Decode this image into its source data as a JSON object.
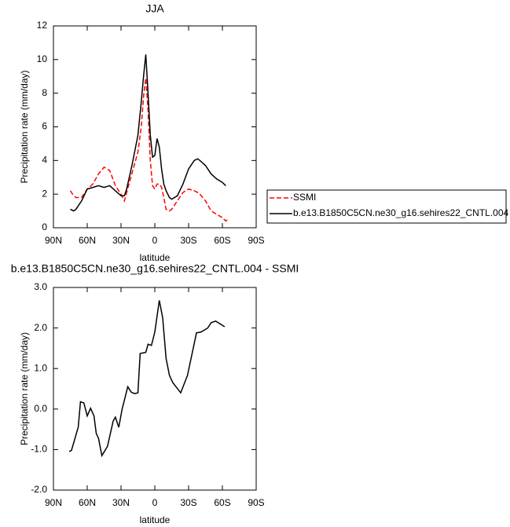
{
  "chart_data": [
    {
      "type": "line",
      "title": "JJA",
      "x_label": "latitude",
      "y_label": "Precipitation rate (mm/day)",
      "x": [
        75,
        72,
        70,
        65,
        60,
        55,
        50,
        45,
        40,
        35,
        30,
        27,
        25,
        20,
        15,
        12,
        10,
        8,
        6,
        4,
        2,
        0,
        -2,
        -4,
        -6,
        -8,
        -10,
        -13,
        -15,
        -20,
        -25,
        -30,
        -35,
        -38,
        -40,
        -45,
        -50,
        -55,
        -60,
        -63,
        -65
      ],
      "series": [
        {
          "name": "SSMI",
          "color": "#ff0000",
          "dashed": true,
          "values": [
            2.2,
            1.9,
            1.8,
            1.8,
            2.3,
            2.6,
            3.2,
            3.6,
            3.4,
            2.5,
            2.0,
            1.6,
            2.1,
            3.3,
            4.5,
            6.0,
            7.8,
            8.9,
            7.0,
            4.0,
            2.5,
            2.3,
            2.6,
            2.6,
            2.4,
            1.8,
            1.1,
            1.0,
            1.1,
            1.6,
            2.1,
            2.3,
            2.2,
            2.1,
            2.0,
            1.6,
            1.0,
            0.8,
            0.6,
            0.4,
            0.5
          ]
        },
        {
          "name": "b.e13.B1850C5CN.ne30_g16.sehires22_CNTL.004",
          "color": "#000000",
          "dashed": false,
          "values": [
            1.1,
            1.0,
            1.1,
            1.6,
            2.3,
            2.4,
            2.5,
            2.4,
            2.5,
            2.2,
            1.9,
            1.9,
            2.3,
            3.8,
            5.5,
            7.5,
            9.0,
            10.3,
            8.0,
            5.5,
            4.2,
            4.3,
            5.3,
            4.8,
            3.5,
            2.6,
            2.2,
            1.8,
            1.7,
            1.9,
            2.6,
            3.5,
            4.0,
            4.1,
            4.0,
            3.7,
            3.2,
            2.9,
            2.7,
            2.5,
            null
          ]
        }
      ],
      "xlim": [
        90,
        -90
      ],
      "xticks": [
        {
          "value": 90,
          "label": "90N"
        },
        {
          "value": 60,
          "label": "60N"
        },
        {
          "value": 30,
          "label": "30N"
        },
        0,
        {
          "value": -30,
          "label": "30S"
        },
        {
          "value": -60,
          "label": "60S"
        },
        {
          "value": -90,
          "label": "90S"
        }
      ],
      "ylim": [
        0,
        12
      ],
      "yticks": [
        0,
        2,
        4,
        6,
        8,
        10,
        12
      ],
      "legend": "outside-right"
    },
    {
      "type": "line",
      "title": "b.e13.B1850C5CN.ne30_g16.sehires22_CNTL.004 - SSMI",
      "x_label": "latitude",
      "y_label": "Precipitation rate (mm/day)",
      "x": [
        76,
        74,
        68,
        66,
        63,
        60,
        57,
        54,
        52,
        50,
        47,
        42,
        37,
        35,
        32,
        29,
        24,
        21,
        18,
        15,
        13,
        8,
        6,
        3,
        0,
        -4,
        -7,
        -10,
        -13,
        -16,
        -23,
        -29,
        -37,
        -41,
        -47,
        -50,
        -54,
        -62
      ],
      "series": [
        {
          "color": "#000000",
          "dashed": false,
          "values": [
            -1.05,
            -1.02,
            -0.45,
            0.18,
            0.15,
            -0.17,
            0.02,
            -0.17,
            -0.6,
            -0.72,
            -1.15,
            -0.92,
            -0.3,
            -0.2,
            -0.45,
            0.0,
            0.55,
            0.42,
            0.38,
            0.4,
            1.37,
            1.4,
            1.6,
            1.57,
            1.9,
            2.68,
            2.25,
            1.25,
            0.83,
            0.65,
            0.4,
            0.83,
            1.88,
            1.9,
            2.0,
            2.13,
            2.17,
            2.03
          ]
        }
      ],
      "xlim": [
        90,
        -90
      ],
      "xticks": [
        {
          "value": 90,
          "label": "90N"
        },
        {
          "value": 60,
          "label": "60N"
        },
        {
          "value": 30,
          "label": "30N"
        },
        0,
        {
          "value": -30,
          "label": "30S"
        },
        {
          "value": -60,
          "label": "60S"
        },
        {
          "value": -90,
          "label": "90S"
        }
      ],
      "ylim": [
        -2,
        3
      ],
      "yticks": [
        {
          "value": -2,
          "label": "-2.0"
        },
        {
          "value": -1,
          "label": "-1.0"
        },
        {
          "value": 0,
          "label": "0.0"
        },
        {
          "value": 1,
          "label": "1.0"
        },
        {
          "value": 2,
          "label": "2.0"
        },
        {
          "value": 3,
          "label": "3.0"
        }
      ]
    }
  ]
}
